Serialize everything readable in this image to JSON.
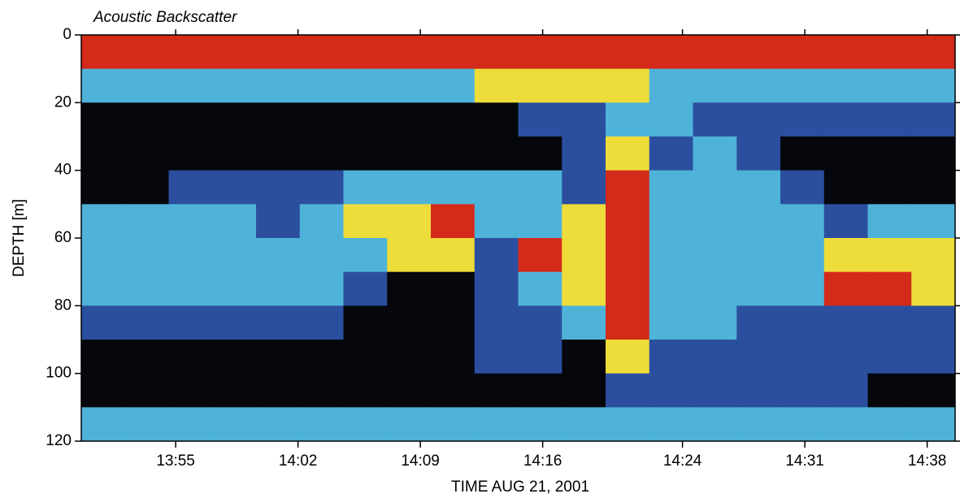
{
  "chart_data": {
    "type": "heatmap",
    "title": "Acoustic Backscatter",
    "xlabel": "TIME AUG 21, 2001",
    "ylabel": "DEPTH [m]",
    "xlim": [
      49.6,
      99.6
    ],
    "ylim": [
      120,
      0
    ],
    "xticks": [
      {
        "value": 55,
        "label": "13:55"
      },
      {
        "value": 62,
        "label": "14:02"
      },
      {
        "value": 69,
        "label": "14:09"
      },
      {
        "value": 76,
        "label": "14:16"
      },
      {
        "value": 84,
        "label": "14:24"
      },
      {
        "value": 91,
        "label": "14:31"
      },
      {
        "value": 98,
        "label": "14:38"
      }
    ],
    "yticks": [
      0,
      20,
      40,
      60,
      80,
      100,
      120
    ],
    "xbins": [
      49.6,
      52.1,
      54.6,
      57.1,
      59.6,
      62.1,
      64.6,
      67.1,
      69.6,
      72.1,
      74.6,
      77.1,
      79.6,
      82.1,
      84.6,
      87.1,
      89.6,
      92.1,
      94.6,
      97.1,
      99.6
    ],
    "ybins": [
      0,
      10,
      20,
      30,
      40,
      50,
      60,
      70,
      80,
      90,
      100,
      110,
      120
    ],
    "colors": [
      "#05070d",
      "#2b4f9e",
      "#4fb3d9",
      "#eedc3a",
      "#d42a1a"
    ],
    "z": [
      [
        4,
        4,
        4,
        4,
        4,
        4,
        4,
        4,
        4,
        4,
        4,
        4,
        4,
        4,
        4,
        4,
        4,
        4,
        4,
        4
      ],
      [
        2,
        2,
        2,
        2,
        2,
        2,
        2,
        2,
        2,
        3,
        3,
        3,
        3,
        2,
        2,
        2,
        2,
        2,
        2,
        2
      ],
      [
        0,
        0,
        0,
        0,
        0,
        0,
        0,
        0,
        0,
        0,
        1,
        1,
        2,
        2,
        1,
        1,
        1,
        1,
        1,
        1
      ],
      [
        0,
        0,
        0,
        0,
        0,
        0,
        0,
        0,
        0,
        0,
        0,
        1,
        3,
        1,
        2,
        1,
        0,
        0,
        0,
        0
      ],
      [
        0,
        0,
        1,
        1,
        1,
        1,
        2,
        2,
        2,
        2,
        2,
        1,
        4,
        2,
        2,
        2,
        1,
        0,
        0,
        0
      ],
      [
        2,
        2,
        2,
        2,
        1,
        2,
        3,
        3,
        4,
        2,
        2,
        3,
        4,
        2,
        2,
        2,
        2,
        1,
        2,
        2
      ],
      [
        2,
        2,
        2,
        2,
        2,
        2,
        2,
        3,
        3,
        1,
        4,
        3,
        4,
        2,
        2,
        2,
        2,
        3,
        3,
        3
      ],
      [
        2,
        2,
        2,
        2,
        2,
        2,
        1,
        0,
        0,
        1,
        2,
        3,
        4,
        2,
        2,
        2,
        2,
        4,
        4,
        3
      ],
      [
        1,
        1,
        1,
        1,
        1,
        1,
        0,
        0,
        0,
        1,
        1,
        2,
        4,
        2,
        2,
        1,
        1,
        1,
        1,
        1
      ],
      [
        0,
        0,
        0,
        0,
        0,
        0,
        0,
        0,
        0,
        1,
        1,
        0,
        3,
        1,
        1,
        1,
        1,
        1,
        1,
        1
      ],
      [
        0,
        0,
        0,
        0,
        0,
        0,
        0,
        0,
        0,
        0,
        0,
        0,
        1,
        1,
        1,
        1,
        1,
        1,
        0,
        0
      ],
      [
        2,
        2,
        2,
        2,
        2,
        2,
        2,
        2,
        2,
        2,
        2,
        2,
        2,
        2,
        2,
        2,
        2,
        2,
        2,
        2
      ]
    ]
  }
}
